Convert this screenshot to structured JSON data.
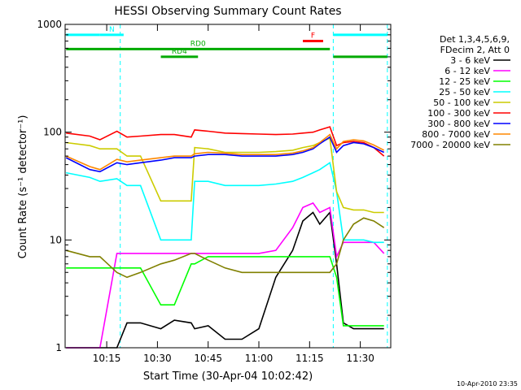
{
  "colors": {
    "det_3_6": "#000000",
    "det_6_12": "#ff00ff",
    "det_12_25": "#00ff00",
    "det_25_50": "#00ffff",
    "det_50_100": "#cccc00",
    "det_100_300": "#ff0000",
    "det_300_800": "#0000ff",
    "det_800_7000": "#ff8800",
    "det_7000_20000": "#808000",
    "flag_bar": "#00aa00",
    "night_marker": "#00ffff",
    "flare_marker": "#ff0000"
  },
  "chart_data": {
    "type": "line",
    "title": "HESSI Observing Summary Count Rates",
    "xlabel": "Start Time (30-Apr-04 10:02:42)",
    "ylabel": "Count Rate (s⁻¹ detector⁻¹)",
    "yscale": "log",
    "ylim": [
      1,
      1000
    ],
    "xlim": [
      "10:02:42",
      "11:39:00"
    ],
    "x_ticks": [
      "10:15",
      "10:30",
      "10:45",
      "11:00",
      "11:15",
      "11:30"
    ],
    "y_ticks": [
      "1",
      "10",
      "100",
      "1000"
    ],
    "grid": false,
    "legend_position": "right",
    "legend_header": [
      "Det 1,3,4,5,6,9,",
      "FDecim 2, Att 0"
    ],
    "date_stamp": "10-Apr-2010 23:35",
    "x": [
      "10:03",
      "10:10",
      "10:13",
      "10:18",
      "10:21",
      "10:25",
      "10:31",
      "10:35",
      "10:40",
      "10:41",
      "10:45",
      "10:50",
      "10:55",
      "11:00",
      "11:05",
      "11:10",
      "11:13",
      "11:16",
      "11:18",
      "11:21",
      "11:23",
      "11:25",
      "11:28",
      "11:31",
      "11:34",
      "11:37"
    ],
    "series": [
      {
        "name": "3 - 6 keV",
        "color_key": "det_3_6",
        "values": [
          1,
          1,
          1,
          1,
          1.7,
          1.7,
          1.5,
          1.8,
          1.7,
          1.5,
          1.6,
          1.2,
          1.2,
          1.5,
          4.5,
          8,
          15,
          18,
          14,
          18,
          6,
          1.7,
          1.5,
          1.5,
          1.5,
          1.5
        ]
      },
      {
        "name": "6 - 12 keV",
        "color_key": "det_6_12",
        "values": [
          1,
          1,
          1,
          7.5,
          7.5,
          7.5,
          7.5,
          7.5,
          7.5,
          7.5,
          7.5,
          7.5,
          7.5,
          7.5,
          8,
          13,
          20,
          22,
          18,
          20,
          7,
          9.5,
          9.5,
          9.5,
          9.5,
          7.5
        ]
      },
      {
        "name": "12 - 25 keV",
        "color_key": "det_12_25",
        "values": [
          5.5,
          5.5,
          5.5,
          5.5,
          5.5,
          5.5,
          2.5,
          2.5,
          6,
          6,
          7,
          7,
          7,
          7,
          7,
          7,
          7,
          7,
          7,
          7,
          4.5,
          1.6,
          1.6,
          1.6,
          1.6,
          1.6
        ]
      },
      {
        "name": "25 - 50 keV",
        "color_key": "det_25_50",
        "values": [
          42,
          38,
          35,
          37,
          32,
          32,
          10,
          10,
          10,
          35,
          35,
          32,
          32,
          32,
          33,
          35,
          38,
          42,
          45,
          52,
          28,
          10,
          10,
          10,
          9.5,
          9.5
        ]
      },
      {
        "name": "50 - 100 keV",
        "color_key": "det_50_100",
        "values": [
          80,
          75,
          70,
          70,
          60,
          60,
          23,
          23,
          23,
          72,
          70,
          65,
          65,
          65,
          66,
          68,
          72,
          75,
          80,
          88,
          28,
          20,
          19,
          19,
          18,
          18
        ]
      },
      {
        "name": "100 - 300 keV",
        "color_key": "det_100_300",
        "values": [
          98,
          92,
          85,
          102,
          90,
          92,
          95,
          95,
          90,
          105,
          102,
          98,
          97,
          96,
          95,
          96,
          98,
          100,
          105,
          112,
          75,
          80,
          82,
          80,
          72,
          60
        ]
      },
      {
        "name": "300 - 800 keV",
        "color_key": "det_300_800",
        "values": [
          58,
          45,
          43,
          52,
          50,
          52,
          55,
          58,
          58,
          60,
          62,
          62,
          60,
          60,
          60,
          62,
          65,
          70,
          78,
          90,
          65,
          75,
          80,
          78,
          72,
          65
        ]
      },
      {
        "name": "800 - 7000 keV",
        "color_key": "det_800_7000",
        "values": [
          60,
          48,
          45,
          56,
          53,
          55,
          58,
          60,
          60,
          63,
          65,
          64,
          62,
          62,
          62,
          64,
          67,
          72,
          80,
          95,
          70,
          82,
          85,
          83,
          76,
          68
        ]
      },
      {
        "name": "7000 - 20000 keV",
        "color_key": "det_7000_20000",
        "values": [
          8,
          7,
          7,
          5,
          4.5,
          5,
          6,
          6.5,
          7.5,
          7.5,
          6.5,
          5.5,
          5,
          5,
          5,
          5,
          5,
          5,
          5,
          5,
          6,
          10,
          14,
          16,
          15,
          13
        ]
      }
    ],
    "flag_bars": [
      {
        "label": "",
        "start": "10:03",
        "end": "10:13",
        "level": 800,
        "color_key": "night_marker"
      },
      {
        "label": "N",
        "start": "10:13",
        "end": "10:20",
        "level": 800,
        "color_key": "night_marker"
      },
      {
        "label": "",
        "start": "11:22",
        "end": "11:38",
        "level": 800,
        "color_key": "night_marker"
      },
      {
        "label": "RD0",
        "start": "10:03",
        "end": "11:21",
        "level": 590,
        "color_key": "flag_bar"
      },
      {
        "label": "RD4",
        "start": "10:31",
        "end": "10:42",
        "level": 500,
        "color_key": "flag_bar"
      },
      {
        "label": "",
        "start": "11:22",
        "end": "11:38",
        "level": 500,
        "color_key": "flag_bar"
      },
      {
        "label": "F",
        "start": "11:13",
        "end": "11:19",
        "level": 700,
        "color_key": "flare_marker"
      }
    ],
    "night_boundaries": [
      "10:19",
      "11:22",
      "11:38"
    ]
  }
}
